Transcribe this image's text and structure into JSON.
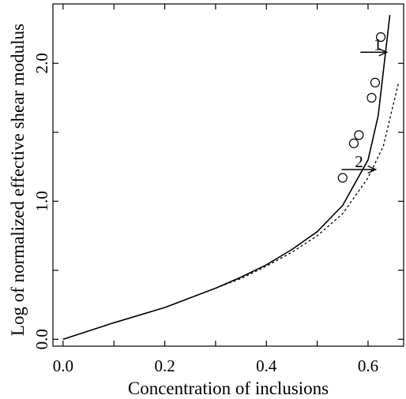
{
  "chart_data": {
    "type": "line",
    "xlabel": "Concentration of inclusions",
    "ylabel": "Log of normalized effective shear modulus",
    "xlim": [
      -0.02,
      0.67
    ],
    "ylim": [
      -0.05,
      2.43
    ],
    "x_ticks": [
      0.0,
      0.2,
      0.4,
      0.6
    ],
    "x_tick_labels": [
      "0.0",
      "0.2",
      "0.4",
      "0.6"
    ],
    "y_ticks": [
      0.0,
      1.0,
      2.0
    ],
    "y_tick_labels": [
      "0.0",
      "1.0",
      "2.0"
    ],
    "grid": false,
    "series": [
      {
        "style": "solid",
        "x": [
          0.0,
          0.1,
          0.2,
          0.3,
          0.35,
          0.4,
          0.45,
          0.5,
          0.55,
          0.6,
          0.62,
          0.643
        ],
        "y": [
          0.0,
          0.12,
          0.23,
          0.37,
          0.45,
          0.54,
          0.65,
          0.78,
          0.97,
          1.3,
          1.62,
          2.35
        ]
      },
      {
        "style": "dashed",
        "x": [
          0.0,
          0.1,
          0.2,
          0.3,
          0.35,
          0.4,
          0.45,
          0.5,
          0.55,
          0.6,
          0.63,
          0.66
        ],
        "y": [
          0.0,
          0.12,
          0.23,
          0.37,
          0.44,
          0.53,
          0.63,
          0.75,
          0.91,
          1.17,
          1.4,
          1.86
        ]
      },
      {
        "style": "points",
        "x": [
          0.55,
          0.572,
          0.582,
          0.607,
          0.614,
          0.625
        ],
        "y": [
          1.17,
          1.42,
          1.48,
          1.75,
          1.86,
          2.19
        ]
      }
    ],
    "annotations": [
      {
        "text": "1",
        "arrow_from": [
          0.585,
          2.08
        ],
        "arrow_to": [
          0.637,
          2.08
        ]
      },
      {
        "text": "2",
        "arrow_from": [
          0.548,
          1.23
        ],
        "arrow_to": [
          0.615,
          1.23
        ]
      }
    ]
  }
}
